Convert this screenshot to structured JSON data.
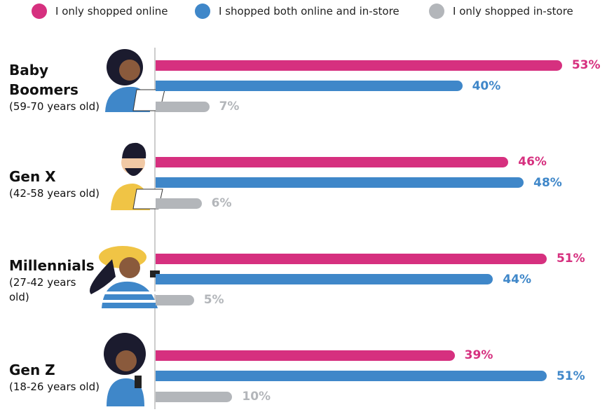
{
  "chart_data": {
    "type": "bar",
    "orientation": "horizontal",
    "categories": [
      "Baby Boomers",
      "Gen X",
      "Millennials",
      "Gen Z"
    ],
    "category_subtitles": [
      "(59-70 years old)",
      "(42-58 years old)",
      "(27-42 years old)",
      "(18-26 years old)"
    ],
    "series": [
      {
        "name": "I only shopped online",
        "color": "#d6307f",
        "values": [
          53,
          46,
          51,
          39
        ],
        "value_labels": [
          "53%",
          "46%",
          "51%",
          "39%"
        ]
      },
      {
        "name": "I shopped both online and in-store",
        "color": "#3f87c9",
        "values": [
          40,
          48,
          44,
          51
        ],
        "value_labels": [
          "40%",
          "48%",
          "44%",
          "51%"
        ]
      },
      {
        "name": "I only shopped in-store",
        "color": "#b3b6ba",
        "values": [
          7,
          6,
          5,
          10
        ],
        "value_labels": [
          "7%",
          "6%",
          "5%",
          "10%"
        ]
      }
    ]
  }
}
